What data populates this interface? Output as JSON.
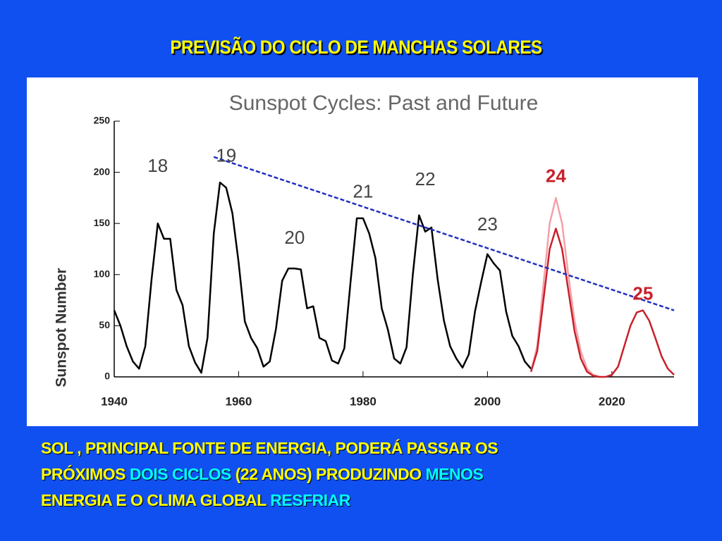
{
  "slide_title": "PREVISÃO DO CICLO DE MANCHAS SOLARES",
  "chart_data": {
    "type": "line",
    "title": "Sunspot Cycles: Past and Future",
    "y_label": "Sunspot Number",
    "xlim": [
      1940,
      2030
    ],
    "xticks": [
      1940,
      1960,
      1980,
      2000,
      2020
    ],
    "ylim": [
      0,
      250
    ],
    "yticks": [
      0,
      50,
      100,
      150,
      200,
      250
    ],
    "series": [
      {
        "color": "#000000",
        "style": "solid",
        "x": [
          1940,
          1941,
          1942,
          1943,
          1944,
          1945,
          1946,
          1947,
          1948,
          1949,
          1950,
          1951,
          1952,
          1953,
          1954,
          1955,
          1956,
          1957,
          1958,
          1959,
          1960,
          1961,
          1962,
          1963,
          1964,
          1965,
          1966,
          1967,
          1968,
          1969,
          1970,
          1971,
          1972,
          1973,
          1974,
          1975,
          1976,
          1977,
          1978,
          1979,
          1980,
          1981,
          1982,
          1983,
          1984,
          1985,
          1986,
          1987,
          1988,
          1989,
          1990,
          1991,
          1992,
          1993,
          1994,
          1995,
          1996,
          1997,
          1998,
          1999,
          2000,
          2001,
          2002,
          2003,
          2004,
          2005,
          2006,
          2007
        ],
        "values": [
          65,
          50,
          30,
          15,
          8,
          30,
          95,
          150,
          135,
          135,
          85,
          70,
          30,
          14,
          4,
          38,
          140,
          190,
          185,
          160,
          112,
          54,
          38,
          28,
          10,
          15,
          47,
          94,
          106,
          106,
          105,
          67,
          69,
          38,
          35,
          16,
          13,
          28,
          93,
          155,
          155,
          140,
          116,
          67,
          46,
          18,
          13,
          29,
          100,
          158,
          142,
          146,
          95,
          55,
          30,
          18,
          9,
          22,
          64,
          93,
          120,
          111,
          104,
          64,
          40,
          30,
          15,
          8
        ]
      },
      {
        "color": "#f4a0a8",
        "style": "solid",
        "x": [
          2007,
          2008,
          2009,
          2010,
          2011,
          2012,
          2013,
          2014,
          2015,
          2016,
          2017,
          2018
        ],
        "values": [
          5,
          30,
          90,
          150,
          175,
          150,
          100,
          55,
          25,
          8,
          2,
          0
        ]
      },
      {
        "color": "#c8202a",
        "style": "solid",
        "x": [
          2007,
          2008,
          2009,
          2010,
          2011,
          2012,
          2013,
          2014,
          2015,
          2016,
          2017,
          2018,
          2019,
          2020,
          2021,
          2022,
          2023,
          2024,
          2025,
          2026,
          2027,
          2028,
          2029,
          2030
        ],
        "values": [
          5,
          25,
          75,
          125,
          145,
          125,
          85,
          45,
          18,
          5,
          1,
          0,
          0,
          2,
          10,
          30,
          50,
          63,
          65,
          55,
          38,
          20,
          8,
          2
        ]
      },
      {
        "color": "#2030c0",
        "style": "dashed",
        "x": [
          1956,
          2030
        ],
        "values": [
          215,
          65
        ]
      }
    ],
    "annotations": [
      {
        "text": "18",
        "x": 1947,
        "y": 205,
        "color": "#444444"
      },
      {
        "text": "19",
        "x": 1958,
        "y": 215,
        "color": "#444444"
      },
      {
        "text": "20",
        "x": 1969,
        "y": 135,
        "color": "#444444"
      },
      {
        "text": "21",
        "x": 1980,
        "y": 180,
        "color": "#444444"
      },
      {
        "text": "22",
        "x": 1990,
        "y": 192,
        "color": "#444444"
      },
      {
        "text": "23",
        "x": 2000,
        "y": 148,
        "color": "#444444"
      },
      {
        "text": "24",
        "x": 2011,
        "y": 195,
        "color": "#c8202a"
      },
      {
        "text": "25",
        "x": 2025,
        "y": 80,
        "color": "#c8202a"
      }
    ]
  },
  "caption": [
    [
      {
        "text": "SOL , PRINCIPAL FONTE DE ENERGIA, PODERÁ PASSAR OS",
        "color": "#ffff00"
      }
    ],
    [
      {
        "text": "PRÓXIMOS ",
        "color": "#ffff00"
      },
      {
        "text": "DOIS CICLOS",
        "color": "#00ffff"
      },
      {
        "text": " (22 ANOS) PRODUZINDO ",
        "color": "#ffff00"
      },
      {
        "text": "MENOS",
        "color": "#00ffff"
      }
    ],
    [
      {
        "text": "ENERGIA E O CLIMA GLOBAL ",
        "color": "#ffff00"
      },
      {
        "text": "RESFRIAR",
        "color": "#00ffff"
      }
    ]
  ]
}
